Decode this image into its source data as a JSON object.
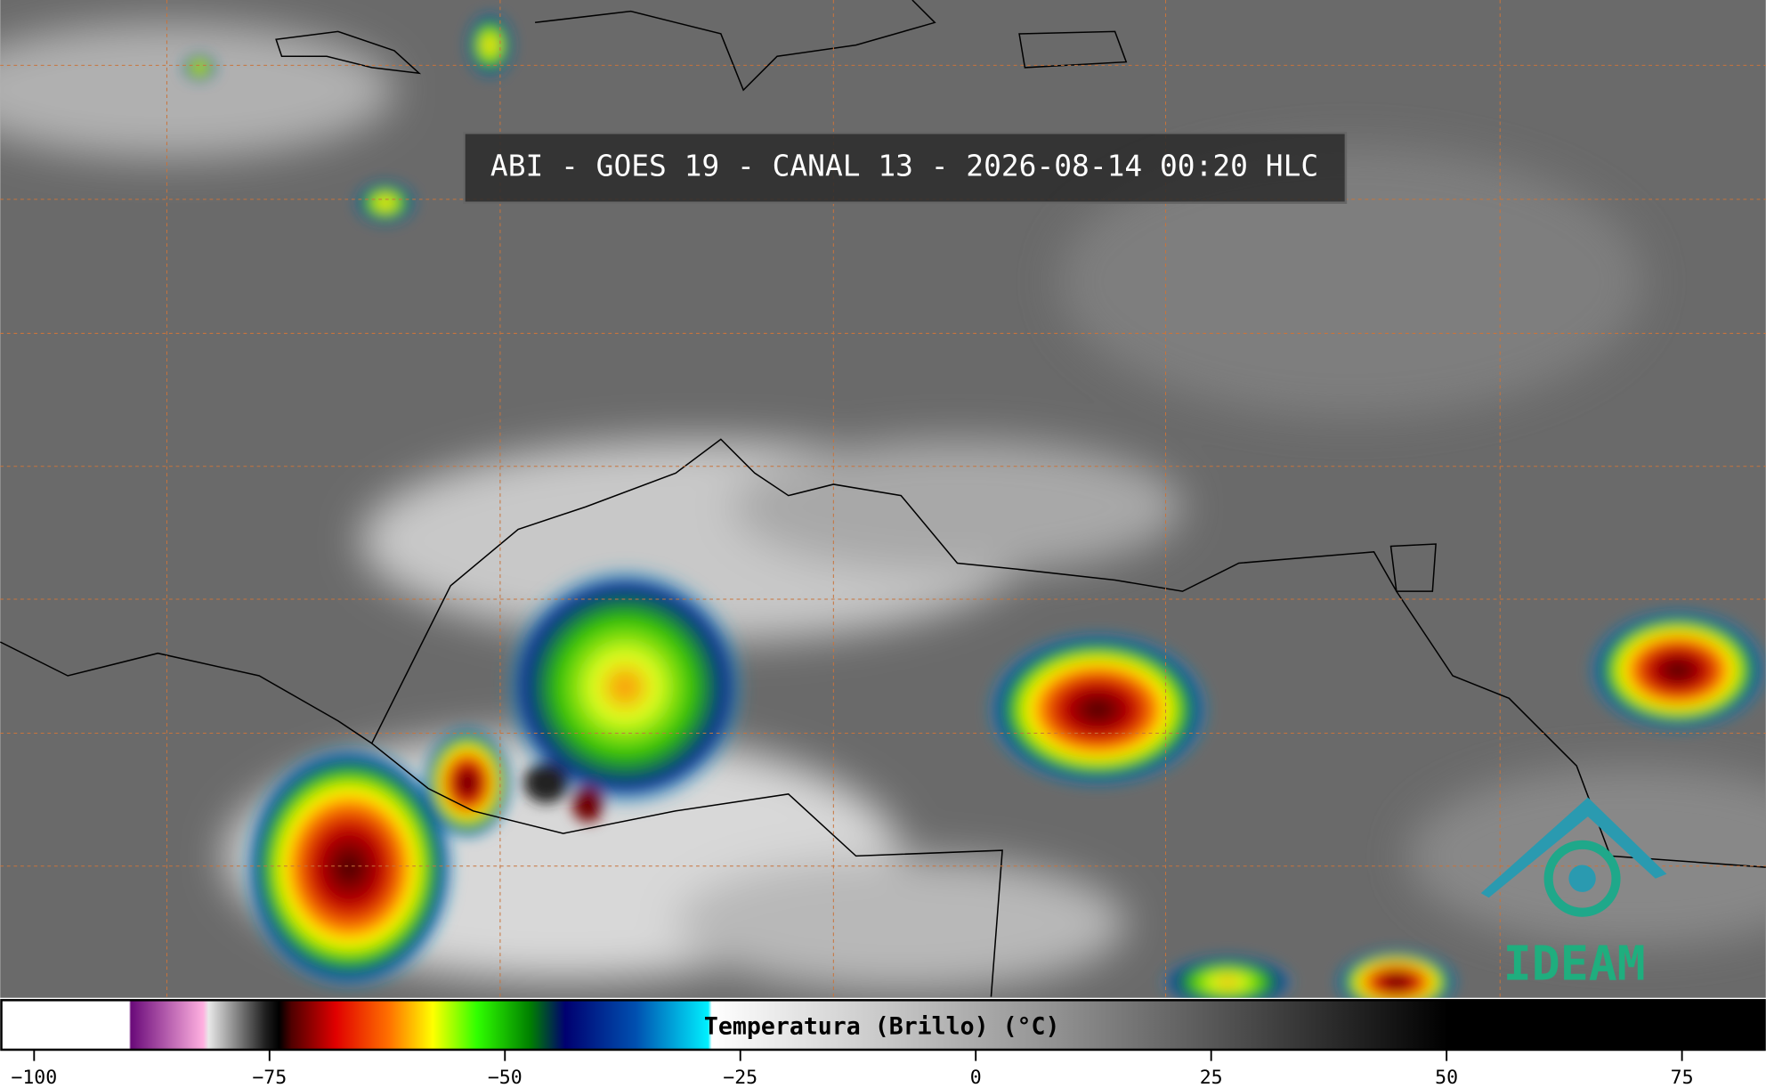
{
  "title": "ABI - GOES 19 - CANAL 13 - 2026-08-14 00:20 HLC",
  "logo": "IDEAM",
  "colorbar": {
    "label": "Temperatura (Brillo) (°C)",
    "lim": [
      -103.6,
      83.9
    ],
    "ticks": [
      {
        "value": -100,
        "label": "−100"
      },
      {
        "value": -75,
        "label": "−75"
      },
      {
        "value": -50,
        "label": "−50"
      },
      {
        "value": -25,
        "label": "−25"
      },
      0,
      25,
      50,
      75
    ]
  }
}
